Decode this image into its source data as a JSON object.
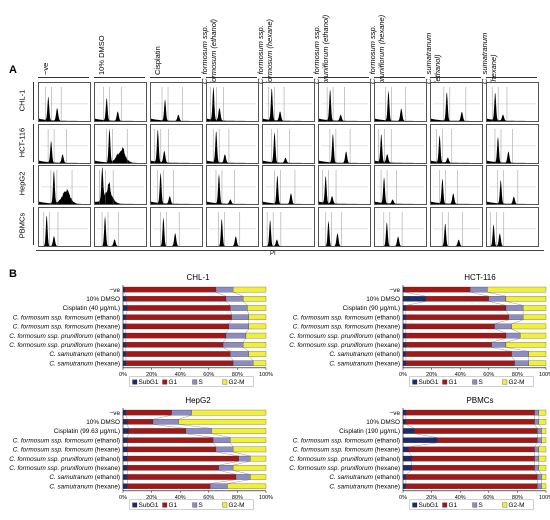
{
  "panel_a": {
    "letter": "A",
    "columns": [
      {
        "plain": "−ve",
        "italic": "",
        "suffix": ""
      },
      {
        "plain": "10% DMSO",
        "italic": "",
        "suffix": ""
      },
      {
        "plain": "Cisplatin",
        "italic": "",
        "suffix": ""
      },
      {
        "plain": "",
        "italic": "C. formosum ssp.",
        "line2": "formosum (ethanol)"
      },
      {
        "plain": "",
        "italic": "C. formosum ssp.",
        "line2": "formosum (hexane)"
      },
      {
        "plain": "",
        "italic": "C. formosum ssp.",
        "line2": "pruniflorum (ethanol)"
      },
      {
        "plain": "",
        "italic": "C. formosum ssp.",
        "line2": "pruniflorum (hexane)"
      },
      {
        "plain": "",
        "italic": "C. sumatranum",
        "line2": "(ethanol)"
      },
      {
        "plain": "",
        "italic": "C. sumatranum",
        "line2": "(hexane)"
      }
    ],
    "rows": [
      "CHL-1",
      "HCT-116",
      "HepG2",
      "PBMCs"
    ],
    "x_axis_label": "PI"
  },
  "panel_b": {
    "letter": "B",
    "colors": {
      "SubG1": "#1f2a6b",
      "G1": "#a01818",
      "S": "#8c8cc0",
      "G2-M": "#f2ef3a"
    },
    "legend": [
      "SubG1",
      "G1",
      "S",
      "G2-M"
    ],
    "x_ticks": [
      "0%",
      "20%",
      "40%",
      "60%",
      "80%",
      "100%"
    ]
  },
  "chart_data": [
    {
      "type": "bar",
      "stacked": true,
      "orientation": "horizontal",
      "title": "CHL-1",
      "categories": [
        "−ve",
        "10% DMSO",
        "Cisplatin (40 μg/mL)",
        "C. formosum ssp. formosum (ethanol)",
        "C. formosum ssp. formosum (hexane)",
        "C. formosum ssp. pruniflorum (ethanol)",
        "C. formosum ssp. pruniflorum (hexane)",
        "C. samutranum (ethanol)",
        "C. samutranum (hexane)"
      ],
      "xlim": [
        0,
        100
      ],
      "series": [
        {
          "name": "SubG1",
          "values": [
            1,
            2,
            3,
            2,
            2,
            2,
            2,
            2,
            2
          ]
        },
        {
          "name": "G1",
          "values": [
            64,
            70,
            72,
            74,
            72,
            70,
            68,
            73,
            75
          ]
        },
        {
          "name": "S",
          "values": [
            12,
            12,
            12,
            12,
            14,
            14,
            14,
            13,
            14
          ]
        },
        {
          "name": "G2-M",
          "values": [
            23,
            16,
            13,
            12,
            12,
            14,
            16,
            12,
            9
          ]
        }
      ]
    },
    {
      "type": "bar",
      "stacked": true,
      "orientation": "horizontal",
      "title": "HCT-116",
      "categories": [
        "−ve",
        "10% DMSO",
        "Cisplatin (90 μg/mL)",
        "C. formosum ssp. formosum (ethanol)",
        "C. formosum ssp. formosum (hexane)",
        "C. formosum ssp. pruniflorum (ethanol)",
        "C. formosum ssp. pruniflorum (hexane)",
        "C. samutranum (ethanol)",
        "C. samutranum (hexane)"
      ],
      "xlim": [
        0,
        100
      ],
      "series": [
        {
          "name": "SubG1",
          "values": [
            1,
            16,
            2,
            2,
            2,
            2,
            2,
            2,
            2
          ]
        },
        {
          "name": "G1",
          "values": [
            46,
            44,
            70,
            72,
            62,
            70,
            60,
            74,
            76
          ]
        },
        {
          "name": "S",
          "values": [
            12,
            12,
            12,
            10,
            12,
            10,
            10,
            12,
            10
          ]
        },
        {
          "name": "G2-M",
          "values": [
            41,
            28,
            16,
            16,
            24,
            18,
            28,
            12,
            12
          ]
        }
      ]
    },
    {
      "type": "bar",
      "stacked": true,
      "orientation": "horizontal",
      "title": "HepG2",
      "categories": [
        "−ve",
        "10% DMSO",
        "Cisplatin (99.63 μg/mL)",
        "C. formosum ssp. formosum (ethanol)",
        "C. formosum ssp. formosum (hexane)",
        "C. formosum ssp. pruniflorum (ethanol)",
        "C. formosum ssp. pruniflorum (hexane)",
        "C. samutranum (ethanol)",
        "C. samutranum (hexane)"
      ],
      "xlim": [
        0,
        100
      ],
      "series": [
        {
          "name": "SubG1",
          "values": [
            2,
            3,
            4,
            3,
            3,
            3,
            3,
            3,
            3
          ]
        },
        {
          "name": "G1",
          "values": [
            32,
            18,
            40,
            60,
            62,
            78,
            64,
            76,
            58
          ]
        },
        {
          "name": "S",
          "values": [
            14,
            18,
            18,
            12,
            12,
            8,
            10,
            10,
            12
          ]
        },
        {
          "name": "G2-M",
          "values": [
            52,
            61,
            38,
            25,
            23,
            11,
            23,
            11,
            27
          ]
        }
      ]
    },
    {
      "type": "bar",
      "stacked": true,
      "orientation": "horizontal",
      "title": "PBMCs",
      "categories": [
        "−ve",
        "10% DMSO",
        "Cisplatin (190 μg/mL)",
        "C. formosum ssp. formosum (ethanol)",
        "C. formosum ssp. formosum (hexane)",
        "C. formosum ssp. pruniflorum (ethanol)",
        "C. formosum ssp. pruniflorum (hexane)",
        "C. samutranum (ethanol)",
        "C. samutranum (hexane)"
      ],
      "xlim": [
        0,
        100
      ],
      "series": [
        {
          "name": "SubG1",
          "values": [
            2,
            2,
            8,
            24,
            4,
            6,
            6,
            2,
            2
          ]
        },
        {
          "name": "G1",
          "values": [
            90,
            90,
            86,
            70,
            88,
            86,
            86,
            92,
            92
          ]
        },
        {
          "name": "S",
          "values": [
            3,
            3,
            3,
            3,
            3,
            3,
            3,
            3,
            3
          ]
        },
        {
          "name": "G2-M",
          "values": [
            5,
            5,
            3,
            3,
            5,
            5,
            5,
            3,
            3
          ]
        }
      ]
    }
  ]
}
